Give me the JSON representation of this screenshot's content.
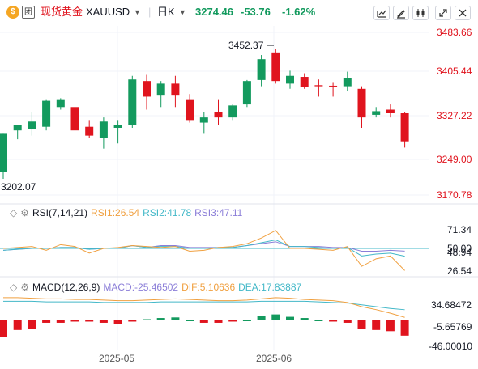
{
  "header": {
    "logo_text": "团",
    "symbol_cn": "现货黄金",
    "symbol": "XAUUSD",
    "interval": "日K",
    "price": "3274.46",
    "change": "-53.76",
    "change_pct": "-1.62%",
    "toolbar_icons": [
      "indicator-icon",
      "draw-icon",
      "chart-type-icon",
      "expand-icon",
      "close-icon"
    ]
  },
  "colors": {
    "up": "#139a5e",
    "down": "#e0141e",
    "rsi1": "#f0a040",
    "rsi2": "#43b8c8",
    "rsi3": "#8b7ed8",
    "macd": "#8b7ed8",
    "dif": "#f0a040",
    "dea": "#43b8c8",
    "price_axis": "#e0141e"
  },
  "price_axis": [
    "3483.66",
    "3405.44",
    "3327.22",
    "3249.00",
    "3170.78"
  ],
  "annotations": {
    "high": "3452.37",
    "low": "3202.07"
  },
  "rsi": {
    "title": "RSI(7,14,21)",
    "rsi1_label": "RSI1:26.54",
    "rsi2_label": "RSI2:41.78",
    "rsi3_label": "RSI3:47.11",
    "axis": [
      "71.34",
      "50.00",
      "48.94",
      "26.54"
    ]
  },
  "macd": {
    "title": "MACD(12,26,9)",
    "macd_label": "MACD:-25.46502",
    "dif_label": "DIF:5.10636",
    "dea_label": "DEA:17.83887",
    "axis": [
      "34.68472",
      "-5.65769",
      "-46.00010"
    ]
  },
  "x_axis": [
    "2025-05",
    "2025-06"
  ],
  "chart_data": {
    "type": "candlestick",
    "ylim": [
      3170.78,
      3483.66
    ],
    "candles": [
      {
        "o": 3215,
        "h": 3290,
        "l": 3202,
        "c": 3290
      },
      {
        "o": 3295,
        "h": 3305,
        "l": 3278,
        "c": 3305
      },
      {
        "o": 3297,
        "h": 3330,
        "l": 3285,
        "c": 3312
      },
      {
        "o": 3302,
        "h": 3355,
        "l": 3295,
        "c": 3352
      },
      {
        "o": 3340,
        "h": 3357,
        "l": 3335,
        "c": 3355
      },
      {
        "o": 3340,
        "h": 3345,
        "l": 3290,
        "c": 3295
      },
      {
        "o": 3302,
        "h": 3315,
        "l": 3280,
        "c": 3285
      },
      {
        "o": 3280,
        "h": 3320,
        "l": 3260,
        "c": 3312
      },
      {
        "o": 3300,
        "h": 3315,
        "l": 3270,
        "c": 3305
      },
      {
        "o": 3305,
        "h": 3400,
        "l": 3300,
        "c": 3393
      },
      {
        "o": 3390,
        "h": 3402,
        "l": 3335,
        "c": 3360
      },
      {
        "o": 3362,
        "h": 3390,
        "l": 3340,
        "c": 3385
      },
      {
        "o": 3385,
        "h": 3400,
        "l": 3340,
        "c": 3362
      },
      {
        "o": 3355,
        "h": 3365,
        "l": 3310,
        "c": 3315
      },
      {
        "o": 3310,
        "h": 3330,
        "l": 3290,
        "c": 3320
      },
      {
        "o": 3330,
        "h": 3355,
        "l": 3305,
        "c": 3320
      },
      {
        "o": 3320,
        "h": 3345,
        "l": 3315,
        "c": 3343
      },
      {
        "o": 3345,
        "h": 3392,
        "l": 3340,
        "c": 3390
      },
      {
        "o": 3392,
        "h": 3440,
        "l": 3380,
        "c": 3432
      },
      {
        "o": 3445,
        "h": 3452,
        "l": 3385,
        "c": 3390
      },
      {
        "o": 3385,
        "h": 3410,
        "l": 3375,
        "c": 3400
      },
      {
        "o": 3398,
        "h": 3405,
        "l": 3375,
        "c": 3378
      },
      {
        "o": 3382,
        "h": 3393,
        "l": 3360,
        "c": 3380
      },
      {
        "o": 3381,
        "h": 3388,
        "l": 3360,
        "c": 3380
      },
      {
        "o": 3380,
        "h": 3408,
        "l": 3370,
        "c": 3395
      },
      {
        "o": 3375,
        "h": 3380,
        "l": 3300,
        "c": 3320
      },
      {
        "o": 3325,
        "h": 3340,
        "l": 3320,
        "c": 3332
      },
      {
        "o": 3335,
        "h": 3345,
        "l": 3320,
        "c": 3328
      },
      {
        "o": 3328,
        "h": 3330,
        "l": 3262,
        "c": 3274
      }
    ],
    "rsi_ylim": [
      20,
      80
    ],
    "rsi1": [
      50,
      51,
      52,
      48,
      54,
      52,
      45,
      50,
      51,
      53,
      52,
      51,
      52,
      47,
      48,
      51,
      52,
      55,
      61,
      69,
      50,
      50,
      49,
      48,
      52,
      31,
      39,
      42,
      26.54
    ],
    "rsi2": [
      48,
      49,
      50,
      50,
      51,
      51,
      49,
      50,
      50,
      53,
      51,
      52,
      52,
      50,
      50,
      51,
      51,
      53,
      56,
      59,
      52,
      52,
      51,
      50,
      51,
      42,
      44,
      45,
      41.78
    ],
    "rsi3": [
      48,
      49,
      50,
      50,
      51,
      51,
      49,
      50,
      50,
      53,
      51,
      53,
      53,
      51,
      51,
      51,
      51,
      53,
      55,
      57,
      52,
      52,
      52,
      51,
      51,
      47,
      47,
      48,
      47.11
    ],
    "macd_ylim": [
      -46,
      46
    ],
    "macd_hist": [
      -28,
      -16,
      -14,
      -4,
      -4,
      -2,
      -2,
      -4,
      -6,
      -2,
      2,
      4,
      5,
      0,
      -4,
      -4,
      -2,
      0,
      8,
      10,
      6,
      4,
      0,
      -2,
      -4,
      -14,
      -16,
      -18,
      -25.47
    ],
    "dif": [
      38,
      38,
      37,
      36,
      36,
      35,
      35,
      34,
      33,
      33,
      34,
      35,
      36,
      35,
      34,
      33,
      33,
      34,
      36,
      38,
      37,
      35,
      34,
      33,
      30,
      23,
      18,
      12,
      5.11
    ],
    "dea": [
      32,
      32,
      32,
      31,
      31,
      31,
      31,
      30,
      30,
      30,
      30,
      31,
      31,
      31,
      31,
      31,
      31,
      31,
      32,
      32,
      32,
      32,
      31,
      30,
      29,
      26,
      23,
      20,
      17.84
    ]
  }
}
